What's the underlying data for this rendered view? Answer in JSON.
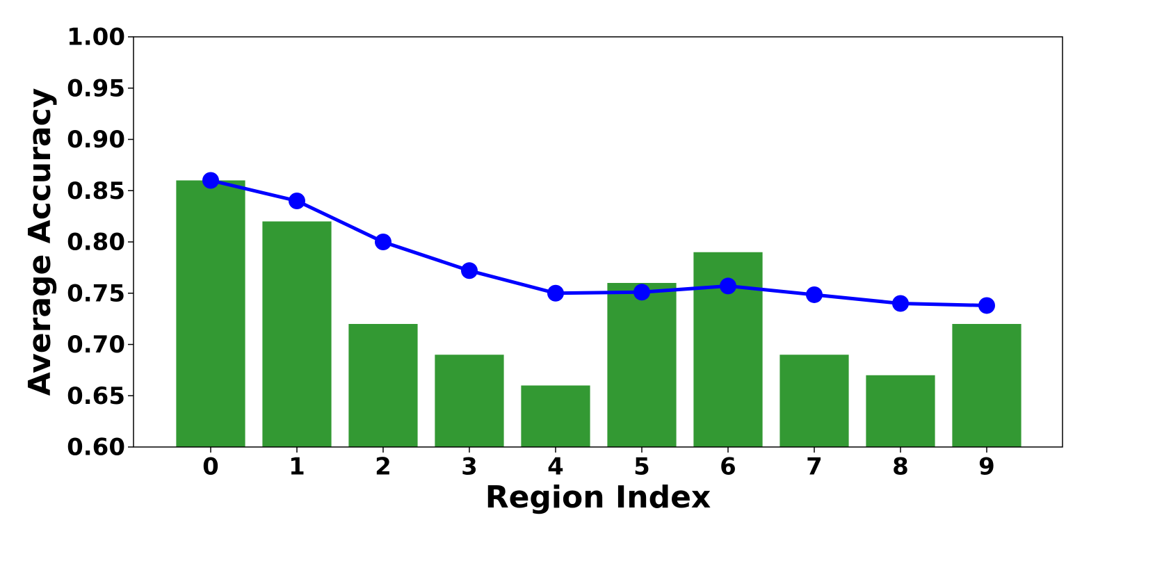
{
  "chart_data": {
    "type": "bar",
    "x_label": "Region Index",
    "y_label": "Average Accuracy",
    "x": [
      0,
      1,
      2,
      3,
      4,
      5,
      6,
      7,
      8,
      9
    ],
    "series": [
      {
        "type": "bar",
        "color": "#339933",
        "values": [
          0.86,
          0.82,
          0.72,
          0.69,
          0.66,
          0.76,
          0.79,
          0.69,
          0.67,
          0.72
        ]
      },
      {
        "type": "line",
        "color": "#0000ff",
        "values": [
          0.86,
          0.84,
          0.8,
          0.772,
          0.75,
          0.751,
          0.757,
          0.7485,
          0.74,
          0.738
        ]
      }
    ],
    "xlim": [
      -0.895,
      9.879
    ],
    "xticks": [
      0,
      1,
      2,
      3,
      4,
      5,
      6,
      7,
      8,
      9
    ],
    "ylim": [
      0.6,
      1.0
    ],
    "yticks": [
      {
        "value": 0.6,
        "label": "0.60"
      },
      {
        "value": 0.65,
        "label": "0.65"
      },
      {
        "value": 0.7,
        "label": "0.70"
      },
      {
        "value": 0.75,
        "label": "0.75"
      },
      {
        "value": 0.8,
        "label": "0.80"
      },
      {
        "value": 0.85,
        "label": "0.85"
      },
      {
        "value": 0.9,
        "label": "0.90"
      },
      {
        "value": 0.95,
        "label": "0.95"
      },
      {
        "value": 1.0,
        "label": "1.00"
      }
    ],
    "grid": false
  }
}
